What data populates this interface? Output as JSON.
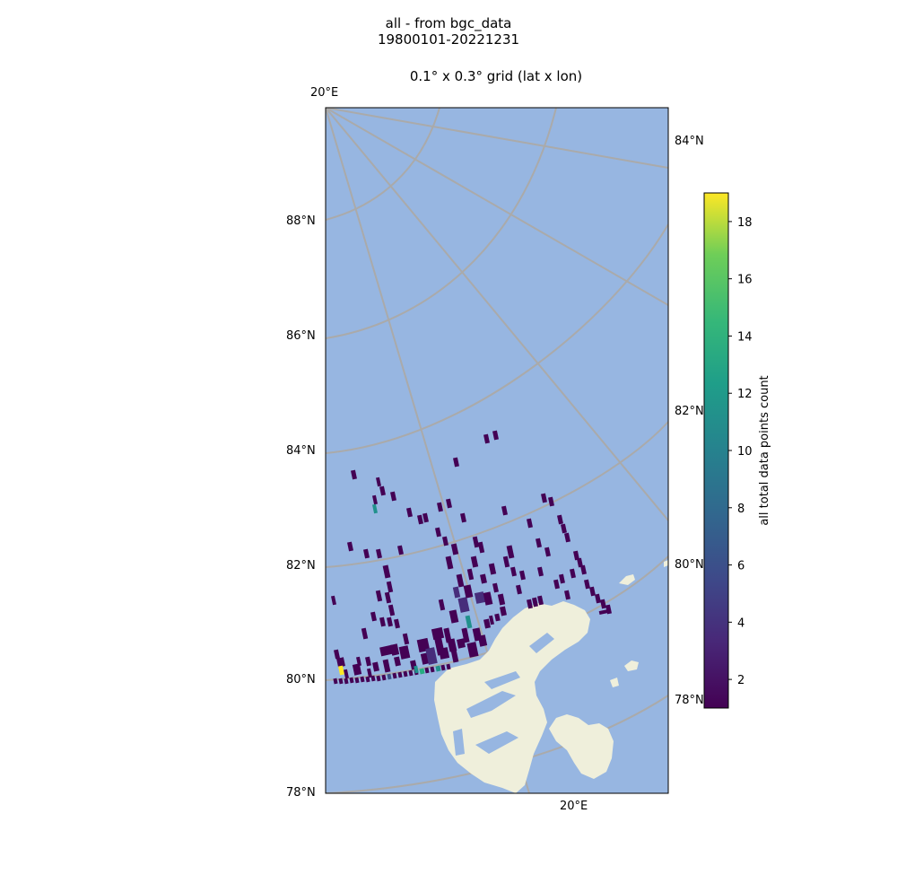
{
  "figure": {
    "title_line1": "all - from bgc_data",
    "title_line2": "19800101-20221231",
    "subtitle": "0.1° x 0.3° grid (lat x lon)"
  },
  "map": {
    "ocean_color": "#97b6e1",
    "land_color": "#efefdb",
    "gridline_color": "#aaaaaa",
    "left_lat_labels": [
      "88°N",
      "86°N",
      "84°N",
      "82°N",
      "80°N",
      "78°N"
    ],
    "right_lat_labels": [
      "84°N",
      "82°N",
      "80°N",
      "78°N"
    ],
    "lon_labels": [
      "20°E",
      "20°E"
    ]
  },
  "colorbar": {
    "label": "all total data points count",
    "ticks": [
      "18",
      "16",
      "14",
      "12",
      "10",
      "8",
      "6",
      "4",
      "2"
    ],
    "min": 1,
    "max": 19,
    "colormap": "viridis"
  },
  "chart_data": {
    "type": "heatmap",
    "title": "0.1° x 0.3° grid (lat x lon)",
    "colorbar_label": "all total data points count",
    "value_range": [
      1,
      19
    ],
    "note_values": "counts per grid cell; most cells 1–3, few up to 10–13, maximum 19"
  }
}
